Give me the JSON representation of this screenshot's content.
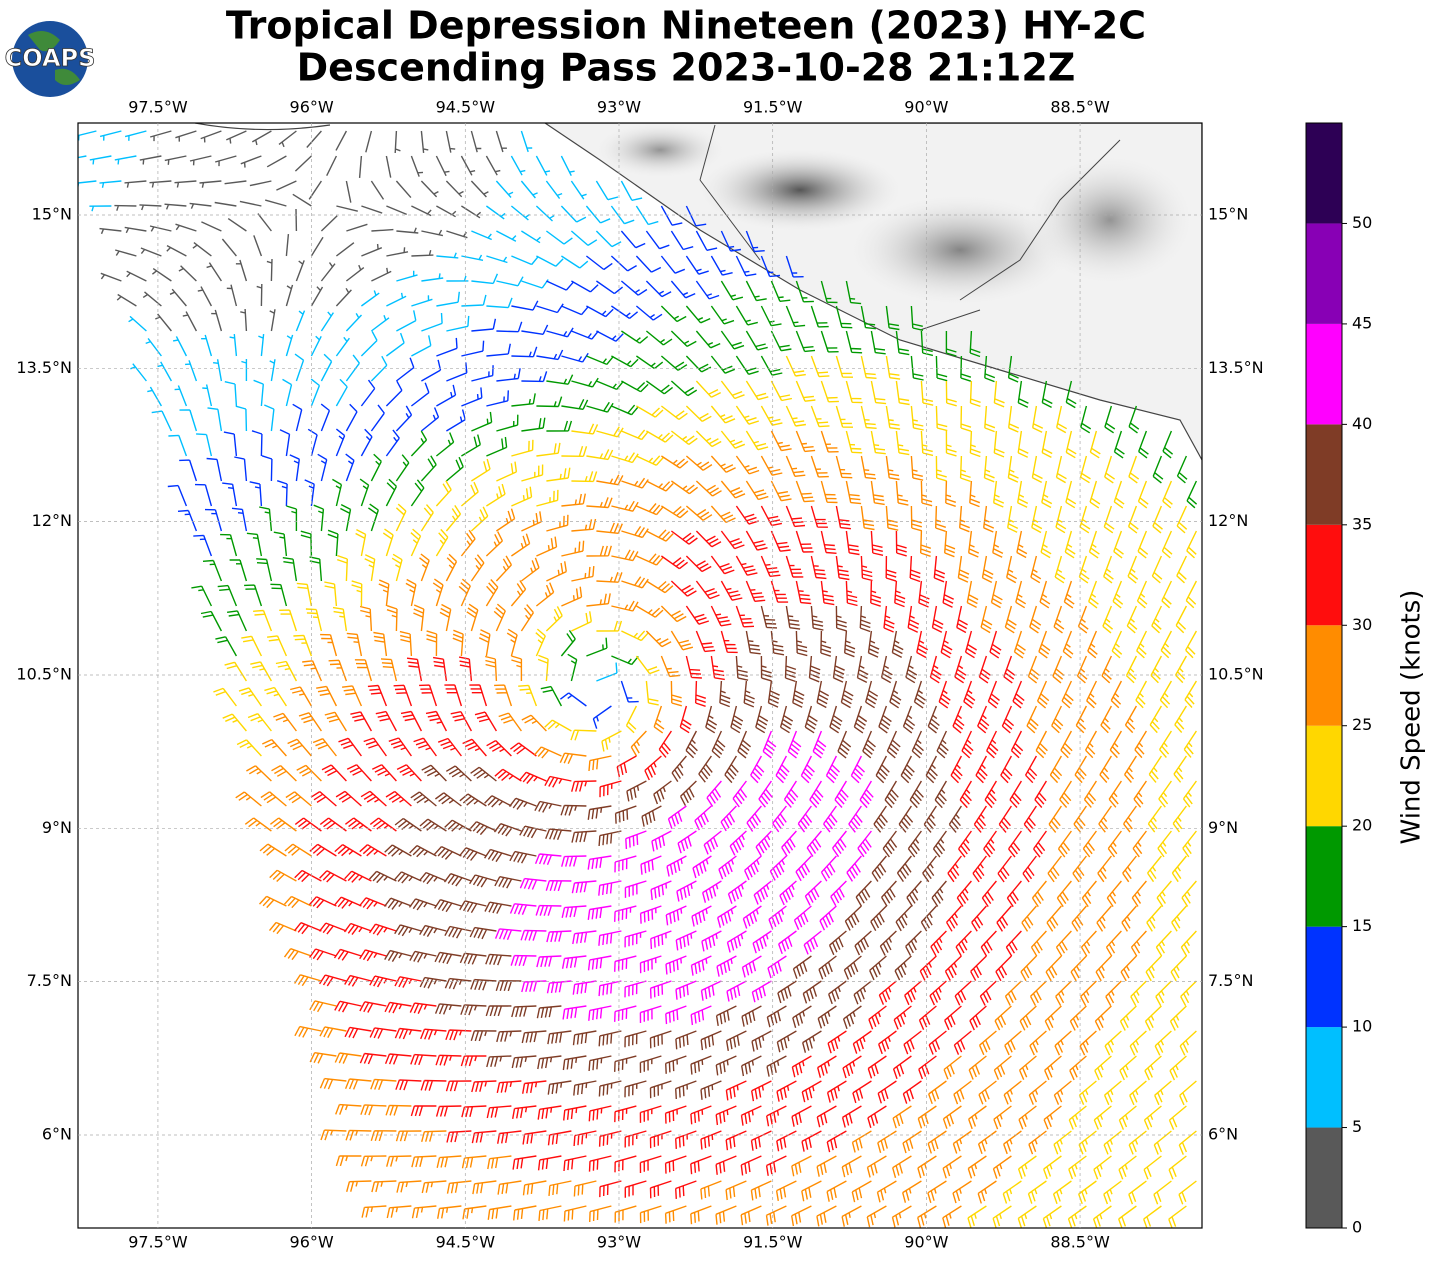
{
  "logo": "COAPS",
  "chart_data": {
    "type": "barb-map",
    "title": [
      "Tropical Depression Nineteen (2023) HY-2C",
      "Descending Pass 2023-10-28 21:12Z"
    ],
    "xlim": [
      -98.28,
      -87.31
    ],
    "ylim": [
      5.09,
      15.9
    ],
    "xticks": [
      {
        "value": -97.5,
        "label": "97.5°W"
      },
      {
        "value": -96,
        "label": "96°W"
      },
      {
        "value": -94.5,
        "label": "94.5°W"
      },
      {
        "value": -93,
        "label": "93°W"
      },
      {
        "value": -91.5,
        "label": "91.5°W"
      },
      {
        "value": -90,
        "label": "90°W"
      },
      {
        "value": -88.5,
        "label": "88.5°W"
      }
    ],
    "yticks": [
      {
        "value": 15,
        "label": "15°N"
      },
      {
        "value": 13.5,
        "label": "13.5°N"
      },
      {
        "value": 12,
        "label": "12°N"
      },
      {
        "value": 10.5,
        "label": "10.5°N"
      },
      {
        "value": 9,
        "label": "9°N"
      },
      {
        "value": 7.5,
        "label": "7.5°N"
      },
      {
        "value": 6,
        "label": "6°N"
      }
    ],
    "grid": true,
    "colorbar": {
      "label": "Wind Speed (knots)",
      "lim": [
        0,
        55
      ],
      "ticks": [
        0,
        5,
        10,
        15,
        20,
        25,
        30,
        35,
        40,
        45,
        50
      ],
      "colors": [
        "#595959",
        "#00bfff",
        "#0033ff",
        "#009900",
        "#ffd700",
        "#ff8c00",
        "#ff0d0d",
        "#7f3c26",
        "#ff00ff",
        "#8800b5",
        "#2d0055"
      ]
    }
  }
}
